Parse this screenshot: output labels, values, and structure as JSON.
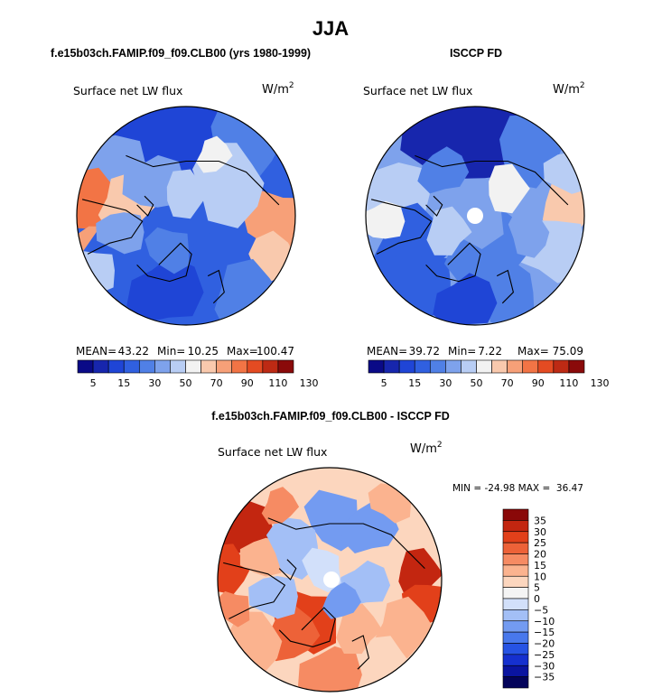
{
  "page": {
    "title": "JJA"
  },
  "colors": {
    "cb13": [
      "#0a0a87",
      "#1726ad",
      "#1f45d6",
      "#3060e0",
      "#5080e6",
      "#7ea2ec",
      "#b8cdf4",
      "#f2f2f2",
      "#f9c9ad",
      "#f7a078",
      "#f27445",
      "#e44b22",
      "#bd2a14",
      "#8a0a0a"
    ],
    "diff": [
      "#03035a",
      "#0a14a0",
      "#1530cf",
      "#2653e4",
      "#4878ec",
      "#739bf1",
      "#a3bff6",
      "#d2e0fa",
      "#f4f4f4",
      "#fcd6be",
      "#fbb38f",
      "#f68b63",
      "#ed6238",
      "#e2401a",
      "#c32610",
      "#8a0808"
    ],
    "land_outline": "#000000",
    "pole_marker": "#ffffff"
  },
  "chart_data": [
    {
      "type": "heatmap",
      "panel": "model",
      "title": "f.e15b03ch.FAMIP.f09_f09.CLB00 (yrs 1980-1999)",
      "variable": "Surface net LW flux",
      "units": "W/m",
      "units_exp": "2",
      "stats": {
        "mean_label": "MEAN=",
        "mean": "43.22",
        "min_label": "Min=",
        "min": "10.25",
        "max_label": "Max=",
        "max": "100.47"
      },
      "colorbar_levels": [
        5,
        10,
        15,
        20,
        30,
        40,
        50,
        60,
        70,
        80,
        90,
        100,
        110,
        120,
        130
      ],
      "colorbar_tick_labels": [
        "5",
        "15",
        "30",
        "50",
        "70",
        "90",
        "110",
        "130"
      ],
      "field_range": [
        10.25,
        100.47
      ],
      "field_mean": 43.22
    },
    {
      "type": "heatmap",
      "panel": "obs",
      "title": "ISCCP FD",
      "variable": "Surface net LW flux",
      "units": "W/m",
      "units_exp": "2",
      "stats": {
        "mean_label": "MEAN=",
        "mean": "39.72",
        "min_label": "Min=",
        "min": "7.22",
        "max_label": "Max=",
        "max": "75.09"
      },
      "colorbar_levels": [
        5,
        10,
        15,
        20,
        30,
        40,
        50,
        60,
        70,
        80,
        90,
        100,
        110,
        120,
        130
      ],
      "colorbar_tick_labels": [
        "5",
        "15",
        "30",
        "50",
        "70",
        "90",
        "110",
        "130"
      ],
      "field_range": [
        7.22,
        75.09
      ],
      "field_mean": 39.72
    },
    {
      "type": "heatmap",
      "panel": "diff",
      "title": "f.e15b03ch.FAMIP.f09_f09.CLB00 - ISCCP FD",
      "variable": "Surface net LW flux",
      "units": "W/m",
      "units_exp": "2",
      "stats_text": "MIN = -24.98 MAX =  36.47",
      "colorbar_tick_labels": [
        "35",
        "30",
        "25",
        "20",
        "15",
        "10",
        "5",
        "0",
        "−5",
        "−10",
        "−15",
        "−20",
        "−25",
        "−30",
        "−35"
      ],
      "field_range": [
        -24.98,
        36.47
      ]
    }
  ]
}
